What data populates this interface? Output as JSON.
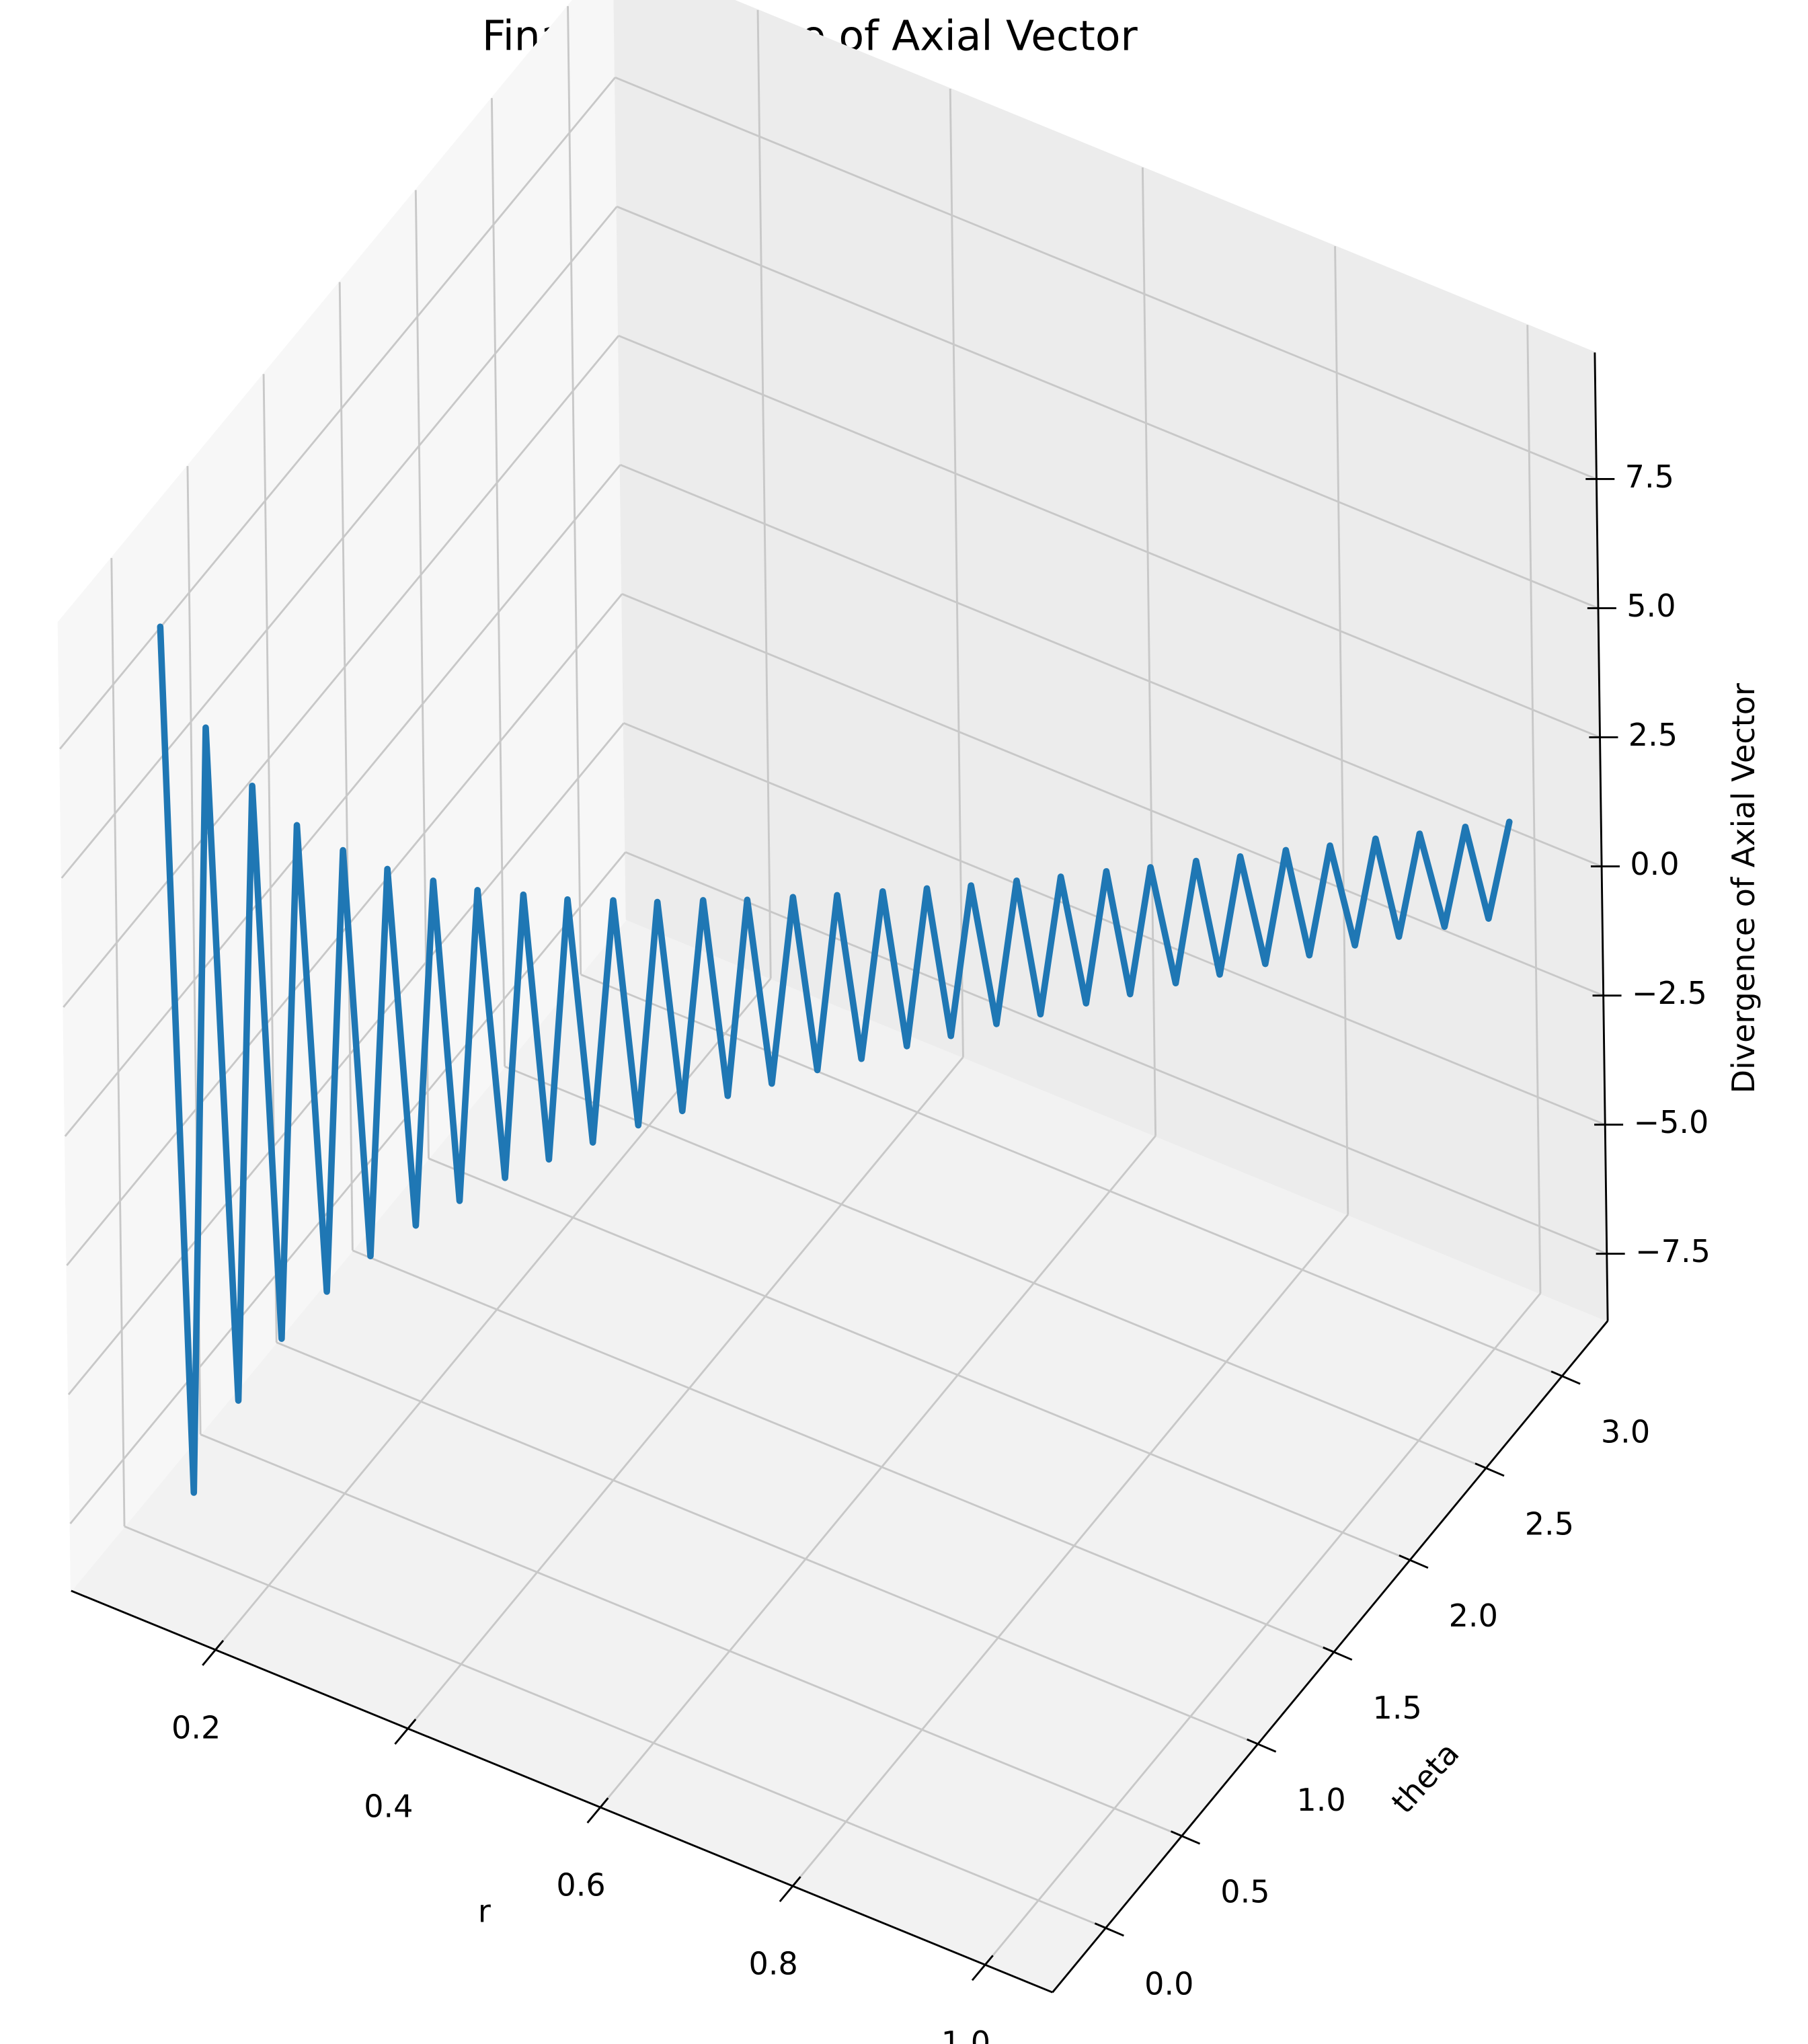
{
  "chart_data": {
    "type": "line3d",
    "title": "Final Divergence of Axial Vector",
    "xlabel": "r",
    "ylabel": "theta",
    "zlabel": "Divergence of Axial Vector",
    "color": "#1f77b4",
    "grid": true,
    "x": [
      0.1,
      0.115,
      0.13,
      0.145,
      0.16,
      0.175,
      0.19,
      0.205,
      0.22,
      0.235,
      0.25,
      0.265,
      0.28,
      0.295,
      0.31,
      0.325,
      0.34,
      0.355,
      0.37,
      0.385,
      0.4,
      0.415,
      0.43,
      0.445,
      0.46,
      0.475,
      0.49,
      0.505,
      0.52,
      0.535,
      0.55,
      0.565,
      0.58,
      0.595,
      0.61,
      0.625,
      0.64,
      0.655,
      0.67,
      0.685,
      0.7,
      0.715,
      0.73,
      0.745,
      0.76,
      0.775,
      0.79,
      0.805,
      0.82,
      0.835,
      0.85,
      0.865,
      0.88,
      0.895,
      0.91,
      0.925,
      0.94,
      0.955,
      0.97,
      0.985,
      1.0
    ],
    "y": [
      0,
      0.05,
      0.1,
      0.16,
      0.21,
      0.26,
      0.31,
      0.37,
      0.42,
      0.47,
      0.52,
      0.58,
      0.63,
      0.68,
      0.73,
      0.79,
      0.84,
      0.89,
      0.94,
      0.99,
      1.05,
      1.1,
      1.15,
      1.2,
      1.26,
      1.31,
      1.36,
      1.41,
      1.47,
      1.52,
      1.57,
      1.62,
      1.68,
      1.73,
      1.78,
      1.83,
      1.88,
      1.94,
      1.99,
      2.04,
      2.09,
      2.15,
      2.2,
      2.25,
      2.3,
      2.36,
      2.41,
      2.46,
      2.51,
      2.57,
      2.62,
      2.67,
      2.72,
      2.78,
      2.83,
      2.88,
      2.93,
      2.99,
      3.04,
      3.09,
      3.14
    ],
    "z": [
      9.0,
      -7.83,
      6.92,
      -6.21,
      5.63,
      -5.14,
      4.74,
      -4.39,
      4.09,
      -3.83,
      3.6,
      -3.4,
      3.21,
      -3.05,
      2.9,
      -2.77,
      2.65,
      -2.54,
      2.43,
      -2.34,
      2.25,
      -2.17,
      2.09,
      -2.02,
      1.96,
      -1.89,
      1.84,
      -1.78,
      1.73,
      -1.68,
      1.64,
      -1.59,
      1.55,
      -1.51,
      1.48,
      -1.44,
      1.41,
      -1.37,
      1.34,
      -1.31,
      1.29,
      -1.26,
      1.23,
      -1.21,
      1.18,
      -1.16,
      1.14,
      -1.12,
      1.1,
      -1.08,
      1.06,
      -1.04,
      1.02,
      -1.01,
      0.99,
      -0.97,
      0.96,
      -0.94,
      0.93,
      -0.91,
      0.9
    ],
    "xlim": [
      0.05,
      1.07
    ],
    "ylim": [
      -0.35,
      3.3
    ],
    "zlim": [
      -8.8,
      9.95
    ],
    "xticks": [
      0.2,
      0.4,
      0.6,
      0.8,
      {
        "value": 1.0,
        "label": "1.0"
      }
    ],
    "yticks": [
      {
        "value": 0.0,
        "label": "0.0"
      },
      0.5,
      {
        "value": 1.0,
        "label": "1.0"
      },
      1.5,
      {
        "value": 2.0,
        "label": "2.0"
      },
      2.5,
      {
        "value": 3.0,
        "label": "3.0"
      }
    ],
    "zticks": [
      {
        "value": -7.5,
        "label": "−7.5"
      },
      {
        "value": -5.0,
        "label": "−5.0"
      },
      {
        "value": -2.5,
        "label": "−2.5"
      },
      {
        "value": 0.0,
        "label": "0.0"
      },
      2.5,
      {
        "value": 5.0,
        "label": "5.0"
      },
      7.5
    ]
  }
}
